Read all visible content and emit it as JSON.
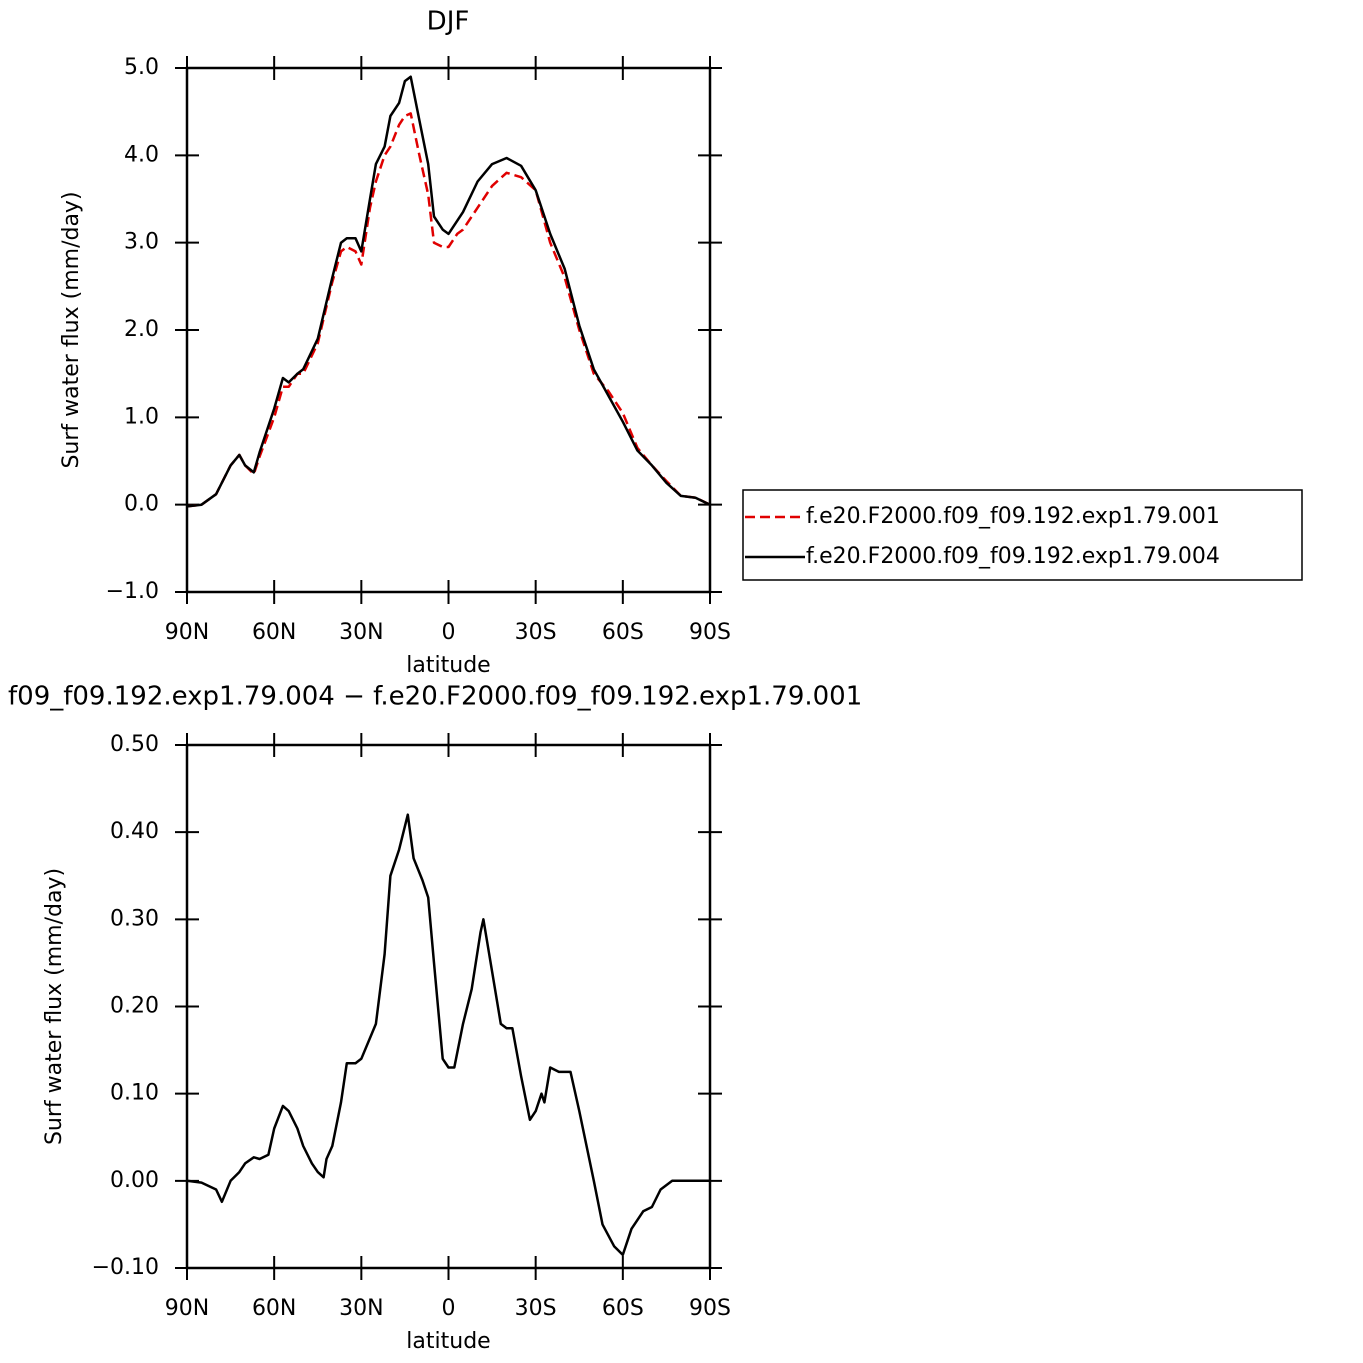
{
  "chart_data": [
    {
      "type": "line",
      "title": "DJF",
      "ylabel": "Surf water flux (mm/day)",
      "xlabel": "latitude",
      "x": [
        90,
        85,
        80,
        75,
        72,
        70,
        67,
        65,
        60,
        57,
        55,
        52,
        50,
        45,
        40,
        37,
        35,
        32,
        30,
        27,
        25,
        22,
        20,
        17,
        15,
        13,
        10,
        7,
        5,
        2,
        0,
        -3,
        -5,
        -10,
        -15,
        -20,
        -25,
        -30,
        -35,
        -40,
        -45,
        -50,
        -55,
        -60,
        -65,
        -70,
        -75,
        -80,
        -85,
        -90
      ],
      "series": [
        {
          "name": "f.e20.F2000.f09_f09.192.exp1.79.001",
          "color": "#e00000",
          "line_style": "dashed",
          "values": [
            -0.02,
            0.0,
            0.12,
            0.45,
            0.57,
            0.45,
            0.35,
            0.55,
            1.0,
            1.35,
            1.35,
            1.5,
            1.5,
            1.85,
            2.55,
            2.9,
            2.95,
            2.9,
            2.75,
            3.4,
            3.7,
            4.0,
            4.1,
            4.35,
            4.45,
            4.48,
            4.0,
            3.55,
            3.0,
            2.95,
            2.95,
            3.1,
            3.15,
            3.4,
            3.65,
            3.8,
            3.75,
            3.6,
            3.0,
            2.6,
            2.0,
            1.5,
            1.3,
            1.05,
            0.65,
            0.45,
            0.27,
            0.1,
            0.08,
            0.0
          ]
        },
        {
          "name": "f.e20.F2000.f09_f09.192.exp1.79.004",
          "color": "#000000",
          "line_style": "solid",
          "values": [
            -0.02,
            0.0,
            0.12,
            0.45,
            0.57,
            0.45,
            0.37,
            0.6,
            1.1,
            1.45,
            1.4,
            1.5,
            1.55,
            1.9,
            2.6,
            3.0,
            3.05,
            3.05,
            2.9,
            3.5,
            3.9,
            4.1,
            4.45,
            4.6,
            4.85,
            4.9,
            4.4,
            3.9,
            3.3,
            3.15,
            3.1,
            3.25,
            3.35,
            3.7,
            3.9,
            3.97,
            3.88,
            3.6,
            3.1,
            2.7,
            2.05,
            1.55,
            1.25,
            0.95,
            0.62,
            0.45,
            0.25,
            0.1,
            0.08,
            0.0
          ]
        }
      ],
      "xlim": [
        90,
        -90
      ],
      "xticks": [
        {
          "value": 90,
          "label": "90N"
        },
        {
          "value": 60,
          "label": "60N"
        },
        {
          "value": 30,
          "label": "30N"
        },
        0,
        {
          "value": -30,
          "label": "30S"
        },
        {
          "value": -60,
          "label": "60S"
        },
        {
          "value": -90,
          "label": "90S"
        }
      ],
      "ylim": [
        -1,
        5
      ],
      "yticks": [
        {
          "value": -1,
          "label": "−1.0"
        },
        {
          "value": 0,
          "label": "0.0"
        },
        {
          "value": 1,
          "label": "1.0"
        },
        {
          "value": 2,
          "label": "2.0"
        },
        {
          "value": 3,
          "label": "3.0"
        },
        {
          "value": 4,
          "label": "4.0"
        },
        {
          "value": 5,
          "label": "5.0"
        }
      ],
      "legend": "right"
    },
    {
      "type": "line",
      "title": "f09_f09.192.exp1.79.004 − f.e20.F2000.f09_f09.192.exp1.79.001",
      "ylabel": "Surf water flux (mm/day)",
      "xlabel": "latitude",
      "x": [
        90,
        85,
        80,
        78,
        75,
        72,
        70,
        67,
        65,
        62,
        60,
        57,
        55,
        52,
        50,
        47,
        45,
        43,
        42,
        40,
        37,
        35,
        32,
        30,
        25,
        22,
        20,
        17,
        14,
        12,
        9,
        7,
        5,
        2,
        0,
        -2,
        -5,
        -8,
        -11,
        -12,
        -15,
        -18,
        -20,
        -22,
        -25,
        -28,
        -30,
        -32,
        -33,
        -35,
        -38,
        -42,
        -45,
        -50,
        -53,
        -57,
        -60,
        -63,
        -67,
        -70,
        -73,
        -77,
        -80,
        -85,
        -90
      ],
      "series": [
        {
          "color": "#000000",
          "line_style": "solid",
          "values": [
            0.0,
            -0.002,
            -0.01,
            -0.024,
            0.0,
            0.01,
            0.02,
            0.027,
            0.025,
            0.03,
            0.06,
            0.086,
            0.08,
            0.06,
            0.04,
            0.02,
            0.01,
            0.004,
            0.025,
            0.04,
            0.09,
            0.135,
            0.135,
            0.14,
            0.18,
            0.26,
            0.35,
            0.38,
            0.42,
            0.37,
            0.345,
            0.325,
            0.25,
            0.14,
            0.13,
            0.13,
            0.18,
            0.22,
            0.285,
            0.3,
            0.24,
            0.18,
            0.175,
            0.175,
            0.12,
            0.07,
            0.08,
            0.1,
            0.09,
            0.13,
            0.125,
            0.125,
            0.08,
            0.0,
            -0.05,
            -0.075,
            -0.085,
            -0.055,
            -0.035,
            -0.03,
            -0.01,
            0.0,
            0.0,
            0.0,
            0.0
          ]
        }
      ],
      "xlim": [
        90,
        -90
      ],
      "xticks": [
        {
          "value": 90,
          "label": "90N"
        },
        {
          "value": 60,
          "label": "60N"
        },
        {
          "value": 30,
          "label": "30N"
        },
        0,
        {
          "value": -30,
          "label": "30S"
        },
        {
          "value": -60,
          "label": "60S"
        },
        {
          "value": -90,
          "label": "90S"
        }
      ],
      "ylim": [
        -0.1,
        0.5
      ],
      "yticks": [
        {
          "value": -0.1,
          "label": "−0.10"
        },
        {
          "value": 0,
          "label": "0.00"
        },
        {
          "value": 0.1,
          "label": "0.10"
        },
        {
          "value": 0.2,
          "label": "0.20"
        },
        {
          "value": 0.3,
          "label": "0.30"
        },
        {
          "value": 0.4,
          "label": "0.40"
        },
        {
          "value": 0.5,
          "label": "0.50"
        }
      ]
    }
  ]
}
